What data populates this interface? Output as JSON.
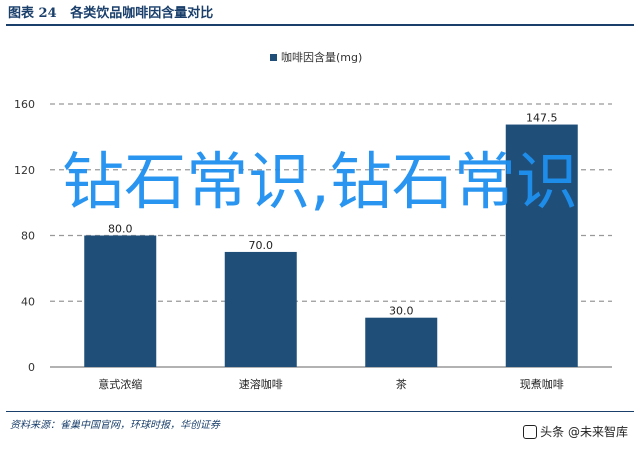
{
  "header": {
    "title": "图表 24   各类饮品咖啡因含量对比"
  },
  "source": "资料来源：雀巢中国官网，环球时报，华创证券",
  "watermark": "钻石常识,钻石常识",
  "brand": {
    "label": "头条 @未来智库",
    "icon": "toutiao-icon"
  },
  "colors": {
    "bar": "#1f4e79",
    "title": "#1a3f6b",
    "watermark": "#1e90f0"
  },
  "chart_data": {
    "type": "bar",
    "categories": [
      "意式浓缩",
      "速溶咖啡",
      "茶",
      "现煮咖啡"
    ],
    "series": [
      {
        "name": "咖啡因含量(mg)",
        "values": [
          80.0,
          70.0,
          30.0,
          147.5
        ]
      }
    ],
    "data_labels": [
      "80.0",
      "70.0",
      "30.0",
      "147.5"
    ],
    "ylim": [
      0,
      160
    ],
    "yticks": [
      0,
      40,
      80,
      120,
      160
    ],
    "ytick_labels": [
      "0",
      "40",
      "80",
      "120",
      "160"
    ],
    "grid": "horizontal dashed",
    "legend_position": "top-center"
  }
}
